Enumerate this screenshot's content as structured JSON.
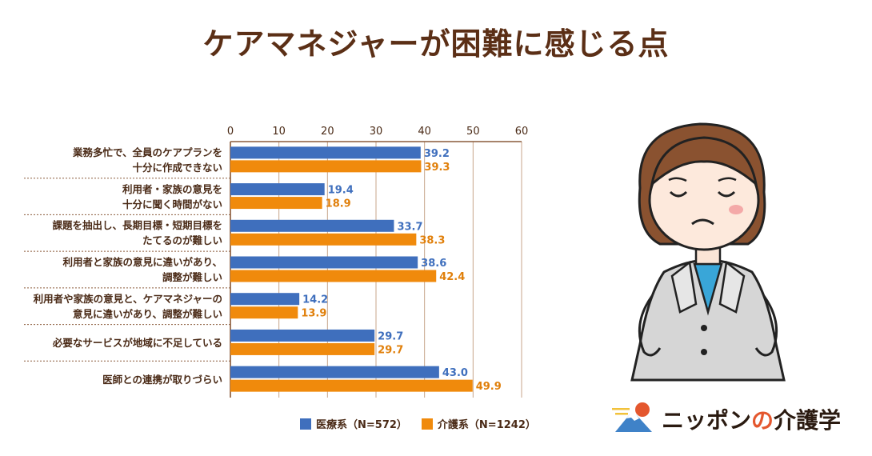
{
  "title": "ケアマネジャーが困難に感じる点",
  "colors": {
    "iryo": "#3f6fbd",
    "kaigo": "#f08a0c",
    "title": "#5b2f16",
    "axis": "#8a5a3a"
  },
  "legend": [
    {
      "label": "医療系（N=572）",
      "color": "#3f6fbd"
    },
    {
      "label": "介護系（N=1242）",
      "color": "#f08a0c"
    }
  ],
  "logo": {
    "text_a": "ニッポン",
    "text_b": "の",
    "text_c": "介護学"
  },
  "chart_data": {
    "type": "bar",
    "orientation": "horizontal",
    "title": "ケアマネジャーが困難に感じる点",
    "xlim": [
      0,
      60
    ],
    "xticks": [
      "0",
      "10",
      "20",
      "30",
      "40",
      "50",
      "60"
    ],
    "grid": true,
    "legend_position": "bottom",
    "categories": [
      [
        "業務多忙で、全員のケアプランを",
        "十分に作成できない"
      ],
      [
        "利用者・家族の意見を",
        "十分に聞く時間がない"
      ],
      [
        "課題を抽出し、長期目標・短期目標を",
        "たてるのが難しい"
      ],
      [
        "利用者と家族の意見に違いがあり、",
        "調整が難しい"
      ],
      [
        "利用者や家族の意見と、ケアマネジャーの",
        "意見に違いがあり、調整が難しい"
      ],
      [
        "必要なサービスが地域に不足している"
      ],
      [
        "医師との連携が取りづらい"
      ]
    ],
    "series": [
      {
        "name": "医療系（N=572）",
        "values": [
          39.2,
          19.4,
          33.7,
          38.6,
          14.2,
          29.7,
          43.0
        ],
        "labels": [
          "39.2",
          "19.4",
          "33.7",
          "38.6",
          "14.2",
          "29.7",
          "43.0"
        ]
      },
      {
        "name": "介護系（N=1242）",
        "values": [
          39.3,
          18.9,
          38.3,
          42.4,
          13.9,
          29.7,
          49.9
        ],
        "labels": [
          "39.3",
          "18.9",
          "38.3",
          "42.4",
          "13.9",
          "29.7",
          "49.9"
        ]
      }
    ]
  }
}
